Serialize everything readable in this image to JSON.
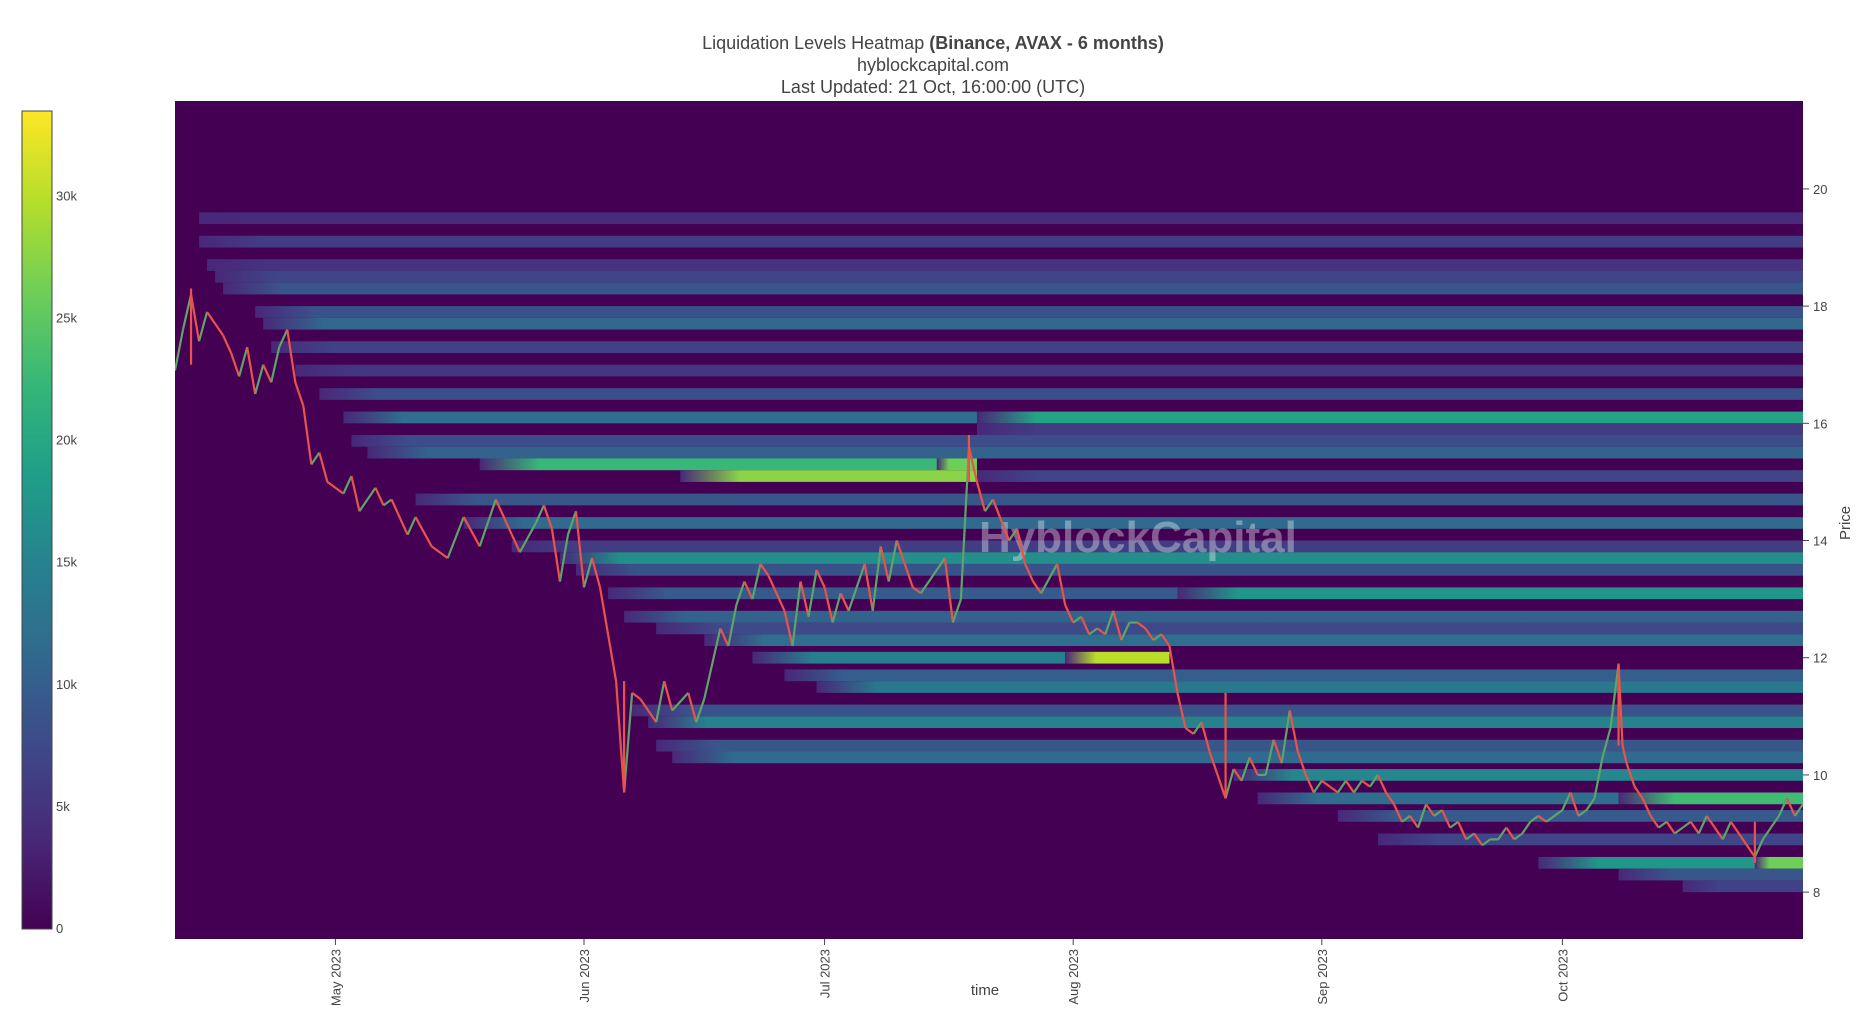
{
  "chart_data": {
    "type": "heatmap",
    "title": "Liquidation Levels Heatmap",
    "title_bold": "(Binance, AVAX - 6 months)",
    "subtitle": "hyblockcapital.com",
    "updated": "Last Updated: 21 Oct, 16:00:00 (UTC)",
    "watermark": "HyblockCapital",
    "xlabel": "time",
    "ylabel": "Price",
    "ylim": [
      7.2,
      21.5
    ],
    "x_range_days": [
      -20,
      183
    ],
    "y_ticks": [
      8,
      10,
      12,
      14,
      16,
      18,
      20
    ],
    "x_ticks": [
      {
        "day": 0,
        "label": "May 2023"
      },
      {
        "day": 31,
        "label": "Jun 2023"
      },
      {
        "day": 61,
        "label": "Jul 2023"
      },
      {
        "day": 92,
        "label": "Aug 2023"
      },
      {
        "day": 123,
        "label": "Sep 2023"
      },
      {
        "day": 153,
        "label": "Oct 2023"
      }
    ],
    "colorscale": {
      "name": "Viridis",
      "range": [
        0,
        33500
      ],
      "ticks": [
        {
          "value": 0,
          "label": "0"
        },
        {
          "value": 5000,
          "label": "5k"
        },
        {
          "value": 10000,
          "label": "10k"
        },
        {
          "value": 15000,
          "label": "15k"
        },
        {
          "value": 20000,
          "label": "20k"
        },
        {
          "value": 25000,
          "label": "25k"
        },
        {
          "value": 30000,
          "label": "30k"
        }
      ],
      "colors": [
        "#440154",
        "#482878",
        "#3e4989",
        "#31688e",
        "#26828e",
        "#1f9e89",
        "#35b779",
        "#6ece58",
        "#b5de2b",
        "#fde725"
      ]
    },
    "price_path": [
      [
        -20,
        16.9
      ],
      [
        -19,
        17.6
      ],
      [
        -18,
        18.2
      ],
      [
        -17,
        17.4
      ],
      [
        -16,
        17.9
      ],
      [
        -14,
        17.5
      ],
      [
        -13,
        17.2
      ],
      [
        -12,
        16.8
      ],
      [
        -11,
        17.3
      ],
      [
        -10,
        16.5
      ],
      [
        -9,
        17.0
      ],
      [
        -8,
        16.7
      ],
      [
        -7,
        17.3
      ],
      [
        -6,
        17.6
      ],
      [
        -5,
        16.7
      ],
      [
        -4,
        16.3
      ],
      [
        -3,
        15.3
      ],
      [
        -2,
        15.5
      ],
      [
        -1,
        15.0
      ],
      [
        1,
        14.8
      ],
      [
        2,
        15.1
      ],
      [
        3,
        14.5
      ],
      [
        5,
        14.9
      ],
      [
        6,
        14.6
      ],
      [
        7,
        14.7
      ],
      [
        9,
        14.1
      ],
      [
        10,
        14.4
      ],
      [
        12,
        13.9
      ],
      [
        14,
        13.7
      ],
      [
        16,
        14.4
      ],
      [
        18,
        13.9
      ],
      [
        20,
        14.7
      ],
      [
        22,
        14.1
      ],
      [
        23,
        13.8
      ],
      [
        25,
        14.3
      ],
      [
        26,
        14.6
      ],
      [
        27,
        14.2
      ],
      [
        28,
        13.3
      ],
      [
        29,
        14.1
      ],
      [
        30,
        14.5
      ],
      [
        31,
        13.2
      ],
      [
        32,
        13.7
      ],
      [
        33,
        13.2
      ],
      [
        35,
        11.6
      ],
      [
        36,
        9.7
      ],
      [
        37,
        11.4
      ],
      [
        38,
        11.3
      ],
      [
        40,
        10.9
      ],
      [
        41,
        11.6
      ],
      [
        42,
        11.1
      ],
      [
        44,
        11.4
      ],
      [
        45,
        10.9
      ],
      [
        46,
        11.3
      ],
      [
        48,
        12.5
      ],
      [
        49,
        12.2
      ],
      [
        50,
        12.9
      ],
      [
        51,
        13.3
      ],
      [
        52,
        13.0
      ],
      [
        53,
        13.6
      ],
      [
        54,
        13.4
      ],
      [
        56,
        12.8
      ],
      [
        57,
        12.2
      ],
      [
        58,
        13.3
      ],
      [
        59,
        12.7
      ],
      [
        60,
        13.5
      ],
      [
        61,
        13.2
      ],
      [
        62,
        12.6
      ],
      [
        63,
        13.1
      ],
      [
        64,
        12.8
      ],
      [
        66,
        13.6
      ],
      [
        67,
        12.8
      ],
      [
        68,
        13.9
      ],
      [
        69,
        13.3
      ],
      [
        70,
        14.0
      ],
      [
        71,
        13.6
      ],
      [
        72,
        13.2
      ],
      [
        73,
        13.1
      ],
      [
        75,
        13.5
      ],
      [
        76,
        13.7
      ],
      [
        77,
        12.6
      ],
      [
        78,
        13.0
      ],
      [
        79,
        15.6
      ],
      [
        80,
        15.0
      ],
      [
        81,
        14.5
      ],
      [
        82,
        14.7
      ],
      [
        84,
        14.0
      ],
      [
        85,
        14.2
      ],
      [
        86,
        13.6
      ],
      [
        87,
        13.3
      ],
      [
        88,
        13.1
      ],
      [
        90,
        13.6
      ],
      [
        91,
        12.9
      ],
      [
        92,
        12.6
      ],
      [
        93,
        12.7
      ],
      [
        94,
        12.4
      ],
      [
        95,
        12.5
      ],
      [
        96,
        12.4
      ],
      [
        97,
        12.8
      ],
      [
        98,
        12.3
      ],
      [
        99,
        12.6
      ],
      [
        100,
        12.6
      ],
      [
        101,
        12.5
      ],
      [
        102,
        12.3
      ],
      [
        103,
        12.4
      ],
      [
        104,
        12.2
      ],
      [
        105,
        11.4
      ],
      [
        106,
        10.8
      ],
      [
        107,
        10.7
      ],
      [
        108,
        10.9
      ],
      [
        109,
        10.4
      ],
      [
        110,
        10.0
      ],
      [
        111,
        9.6
      ],
      [
        112,
        10.1
      ],
      [
        113,
        9.9
      ],
      [
        114,
        10.3
      ],
      [
        115,
        10.0
      ],
      [
        116,
        10.0
      ],
      [
        117,
        10.6
      ],
      [
        118,
        10.2
      ],
      [
        119,
        11.1
      ],
      [
        120,
        10.4
      ],
      [
        121,
        10.0
      ],
      [
        122,
        9.7
      ],
      [
        123,
        9.9
      ],
      [
        124,
        9.8
      ],
      [
        125,
        9.7
      ],
      [
        126,
        9.9
      ],
      [
        127,
        9.7
      ],
      [
        128,
        9.9
      ],
      [
        129,
        9.8
      ],
      [
        130,
        10.0
      ],
      [
        131,
        9.7
      ],
      [
        132,
        9.5
      ],
      [
        133,
        9.2
      ],
      [
        134,
        9.3
      ],
      [
        135,
        9.1
      ],
      [
        136,
        9.5
      ],
      [
        137,
        9.3
      ],
      [
        138,
        9.4
      ],
      [
        139,
        9.1
      ],
      [
        140,
        9.2
      ],
      [
        141,
        8.9
      ],
      [
        142,
        9.0
      ],
      [
        143,
        8.8
      ],
      [
        144,
        8.9
      ],
      [
        145,
        8.9
      ],
      [
        146,
        9.1
      ],
      [
        147,
        8.9
      ],
      [
        148,
        9.0
      ],
      [
        149,
        9.2
      ],
      [
        150,
        9.3
      ],
      [
        151,
        9.2
      ],
      [
        152,
        9.3
      ],
      [
        153,
        9.4
      ],
      [
        154,
        9.7
      ],
      [
        155,
        9.3
      ],
      [
        156,
        9.4
      ],
      [
        157,
        9.6
      ],
      [
        158,
        10.3
      ],
      [
        159,
        10.8
      ],
      [
        160,
        11.9
      ],
      [
        160.5,
        10.5
      ],
      [
        161,
        10.2
      ],
      [
        162,
        9.8
      ],
      [
        163,
        9.6
      ],
      [
        164,
        9.3
      ],
      [
        165,
        9.1
      ],
      [
        166,
        9.2
      ],
      [
        167,
        9.0
      ],
      [
        168,
        9.1
      ],
      [
        169,
        9.2
      ],
      [
        170,
        9.0
      ],
      [
        171,
        9.3
      ],
      [
        172,
        9.1
      ],
      [
        173,
        8.9
      ],
      [
        174,
        9.2
      ],
      [
        175,
        9.0
      ],
      [
        176,
        8.8
      ],
      [
        177,
        8.6
      ],
      [
        178,
        8.9
      ],
      [
        179,
        9.1
      ],
      [
        180,
        9.3
      ],
      [
        181,
        9.6
      ],
      [
        182,
        9.3
      ],
      [
        183,
        9.5
      ]
    ],
    "spikes": [
      {
        "day": 36,
        "low": 9.7,
        "high": 11.6
      },
      {
        "day": 79,
        "low": 15.0,
        "high": 15.8
      },
      {
        "day": 111,
        "low": 9.6,
        "high": 11.4
      },
      {
        "day": 160,
        "low": 10.5,
        "high": 11.9
      },
      {
        "day": -18,
        "low": 17.0,
        "high": 18.3
      },
      {
        "day": 177,
        "low": 8.5,
        "high": 9.2
      }
    ],
    "bands": [
      {
        "y0": 19.4,
        "y1": 19.6,
        "x0": -17,
        "x1": 183,
        "v": 4000
      },
      {
        "y0": 19.0,
        "y1": 19.2,
        "x0": -17,
        "x1": 183,
        "v": 6000
      },
      {
        "y0": 18.6,
        "y1": 18.8,
        "x0": -16,
        "x1": 183,
        "v": 5000
      },
      {
        "y0": 18.4,
        "y1": 18.6,
        "x0": -15,
        "x1": 183,
        "v": 7000
      },
      {
        "y0": 18.2,
        "y1": 18.4,
        "x0": -14,
        "x1": 183,
        "v": 9000
      },
      {
        "y0": 17.8,
        "y1": 18.0,
        "x0": -10,
        "x1": 183,
        "v": 8500
      },
      {
        "y0": 17.6,
        "y1": 17.8,
        "x0": -9,
        "x1": 183,
        "v": 11000
      },
      {
        "y0": 17.2,
        "y1": 17.4,
        "x0": -8,
        "x1": 183,
        "v": 6500
      },
      {
        "y0": 16.8,
        "y1": 17.0,
        "x0": -5,
        "x1": 183,
        "v": 5500
      },
      {
        "y0": 16.4,
        "y1": 16.6,
        "x0": -2,
        "x1": 183,
        "v": 8000
      },
      {
        "y0": 16.0,
        "y1": 16.2,
        "x0": 1,
        "x1": 80,
        "v": 12000
      },
      {
        "y0": 16.0,
        "y1": 16.2,
        "x0": 80,
        "x1": 183,
        "v": 19500
      },
      {
        "y0": 15.8,
        "y1": 16.0,
        "x0": 80,
        "x1": 183,
        "v": 6000
      },
      {
        "y0": 15.6,
        "y1": 15.8,
        "x0": 2,
        "x1": 183,
        "v": 8000
      },
      {
        "y0": 15.4,
        "y1": 15.6,
        "x0": 4,
        "x1": 183,
        "v": 10500
      },
      {
        "y0": 15.2,
        "y1": 15.4,
        "x0": 18,
        "x1": 75,
        "v": 22500
      },
      {
        "y0": 15.2,
        "y1": 15.4,
        "x0": 75,
        "x1": 80,
        "v": 26000
      },
      {
        "y0": 15.0,
        "y1": 15.2,
        "x0": 43,
        "x1": 80,
        "v": 27500
      },
      {
        "y0": 15.0,
        "y1": 15.2,
        "x0": 80,
        "x1": 183,
        "v": 7000
      },
      {
        "y0": 14.6,
        "y1": 14.8,
        "x0": 10,
        "x1": 183,
        "v": 9000
      },
      {
        "y0": 14.2,
        "y1": 14.4,
        "x0": 16,
        "x1": 183,
        "v": 11500
      },
      {
        "y0": 13.8,
        "y1": 14.0,
        "x0": 22,
        "x1": 183,
        "v": 6000
      },
      {
        "y0": 13.6,
        "y1": 13.8,
        "x0": 28,
        "x1": 183,
        "v": 16500
      },
      {
        "y0": 13.4,
        "y1": 13.6,
        "x0": 30,
        "x1": 183,
        "v": 8500
      },
      {
        "y0": 13.0,
        "y1": 13.2,
        "x0": 34,
        "x1": 105,
        "v": 9500
      },
      {
        "y0": 13.0,
        "y1": 13.2,
        "x0": 105,
        "x1": 183,
        "v": 17500
      },
      {
        "y0": 12.6,
        "y1": 12.8,
        "x0": 36,
        "x1": 183,
        "v": 10500
      },
      {
        "y0": 12.4,
        "y1": 12.6,
        "x0": 40,
        "x1": 183,
        "v": 7500
      },
      {
        "y0": 12.2,
        "y1": 12.4,
        "x0": 46,
        "x1": 183,
        "v": 12000
      },
      {
        "y0": 11.9,
        "y1": 12.1,
        "x0": 52,
        "x1": 91,
        "v": 14500
      },
      {
        "y0": 11.9,
        "y1": 12.1,
        "x0": 91,
        "x1": 104,
        "v": 30000
      },
      {
        "y0": 11.6,
        "y1": 11.8,
        "x0": 56,
        "x1": 183,
        "v": 10000
      },
      {
        "y0": 11.4,
        "y1": 11.6,
        "x0": 60,
        "x1": 183,
        "v": 13500
      },
      {
        "y0": 11.0,
        "y1": 11.2,
        "x0": 37,
        "x1": 183,
        "v": 8500
      },
      {
        "y0": 10.8,
        "y1": 11.0,
        "x0": 39,
        "x1": 183,
        "v": 15000
      },
      {
        "y0": 10.4,
        "y1": 10.6,
        "x0": 40,
        "x1": 183,
        "v": 9000
      },
      {
        "y0": 10.2,
        "y1": 10.4,
        "x0": 42,
        "x1": 183,
        "v": 11500
      },
      {
        "y0": 9.9,
        "y1": 10.1,
        "x0": 112,
        "x1": 183,
        "v": 15500
      },
      {
        "y0": 9.5,
        "y1": 9.7,
        "x0": 115,
        "x1": 160,
        "v": 12000
      },
      {
        "y0": 9.5,
        "y1": 9.7,
        "x0": 160,
        "x1": 183,
        "v": 23000
      },
      {
        "y0": 9.2,
        "y1": 9.4,
        "x0": 125,
        "x1": 183,
        "v": 9500
      },
      {
        "y0": 8.8,
        "y1": 9.0,
        "x0": 130,
        "x1": 183,
        "v": 7000
      },
      {
        "y0": 8.4,
        "y1": 8.6,
        "x0": 150,
        "x1": 177,
        "v": 17500
      },
      {
        "y0": 8.4,
        "y1": 8.6,
        "x0": 177,
        "x1": 183,
        "v": 26000
      },
      {
        "y0": 8.2,
        "y1": 8.4,
        "x0": 160,
        "x1": 183,
        "v": 9000
      },
      {
        "y0": 8.0,
        "y1": 8.2,
        "x0": 168,
        "x1": 183,
        "v": 6500
      }
    ]
  }
}
